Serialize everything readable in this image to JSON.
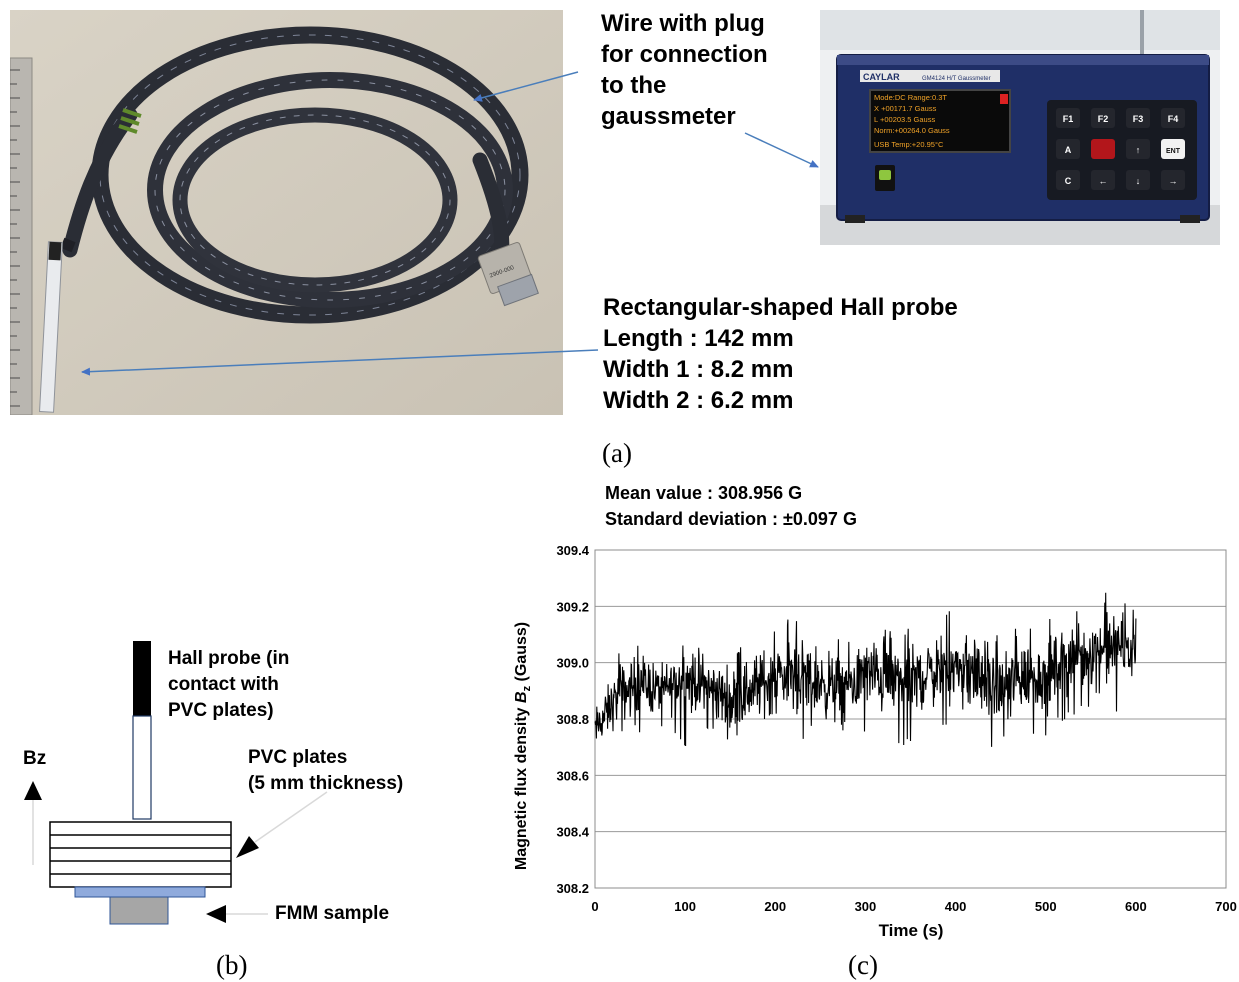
{
  "panel_a": {
    "label": "(a)",
    "wire_callout": [
      "Wire with plug",
      "for connection",
      "to the",
      "gaussmeter"
    ],
    "probe_callout": [
      "Rectangular-shaped Hall probe",
      "Length : 142 mm",
      "Width 1 : 8.2 mm",
      "Width 2 : 6.2 mm"
    ],
    "gaussmeter_brand": "CAYLAR",
    "gaussmeter_model": "GM4124 H/T Gaussmeter",
    "screen_lines": [
      "Mode:DC     Range:0.3T",
      "X   +00171.7 Gauss",
      "L   +00203.5 Gauss",
      "Norm:+00264.0 Gauss",
      "USB    Temp:+20.95°C"
    ],
    "keys": [
      "F1",
      "F2",
      "F3",
      "F4",
      "A",
      "",
      "↑",
      "ENT",
      "C",
      "←",
      "↓",
      "→"
    ],
    "connector_tag": "2900-000"
  },
  "panel_b": {
    "label": "(b)",
    "hall_probe": [
      "Hall probe (in",
      "contact with",
      "PVC plates)"
    ],
    "pvc": [
      "PVC plates",
      "(5 mm thickness)"
    ],
    "bz": "Bz",
    "fmm": "FMM sample"
  },
  "panel_c": {
    "label": "(c)",
    "stats": [
      "Mean value : 308.956 G",
      "Standard deviation : ±0.097 G"
    ],
    "ylabel_main": "Magnetic flux density ",
    "ylabel_var": "B",
    "ylabel_sub": "z",
    "ylabel_unit": " (Gauss)"
  },
  "chart_data": {
    "type": "line",
    "xlabel": "Time (s)",
    "ylabel": "Magnetic flux density Bz (Gauss)",
    "xlim": [
      0,
      700
    ],
    "ylim": [
      308.2,
      309.4
    ],
    "xticks": [
      "0",
      "100",
      "200",
      "300",
      "400",
      "500",
      "600",
      "700"
    ],
    "yticks": [
      "308.2",
      "308.4",
      "308.6",
      "308.8",
      "309.0",
      "309.2",
      "309.4"
    ],
    "grid": "horizontal",
    "series": [
      {
        "x": [
          0,
          25,
          50,
          75,
          100,
          125,
          150,
          175,
          200,
          225,
          250,
          275,
          300,
          325,
          350,
          375,
          400,
          425,
          450,
          475,
          500,
          525,
          550,
          575,
          600
        ],
        "y": [
          308.76,
          308.88,
          308.93,
          308.9,
          308.94,
          308.92,
          308.86,
          308.91,
          308.95,
          308.96,
          308.93,
          308.9,
          308.96,
          308.95,
          308.93,
          308.97,
          308.98,
          308.96,
          308.9,
          308.95,
          308.95,
          309.02,
          309.04,
          309.05,
          309.06
        ],
        "min": [
          308.64,
          308.72,
          308.74,
          308.76,
          308.7,
          308.74,
          308.67,
          308.7,
          308.73,
          308.72,
          308.74,
          308.7,
          308.72,
          308.68,
          308.7,
          308.72,
          308.75,
          308.71,
          308.67,
          308.72,
          308.74,
          308.8,
          308.82,
          308.82,
          308.84
        ],
        "max": [
          308.9,
          309.05,
          309.1,
          309.06,
          309.08,
          309.1,
          309.06,
          309.1,
          309.15,
          309.2,
          309.15,
          309.1,
          309.14,
          309.16,
          309.13,
          309.14,
          309.2,
          309.16,
          309.12,
          309.17,
          309.15,
          309.22,
          309.24,
          309.27,
          309.2
        ]
      }
    ]
  }
}
